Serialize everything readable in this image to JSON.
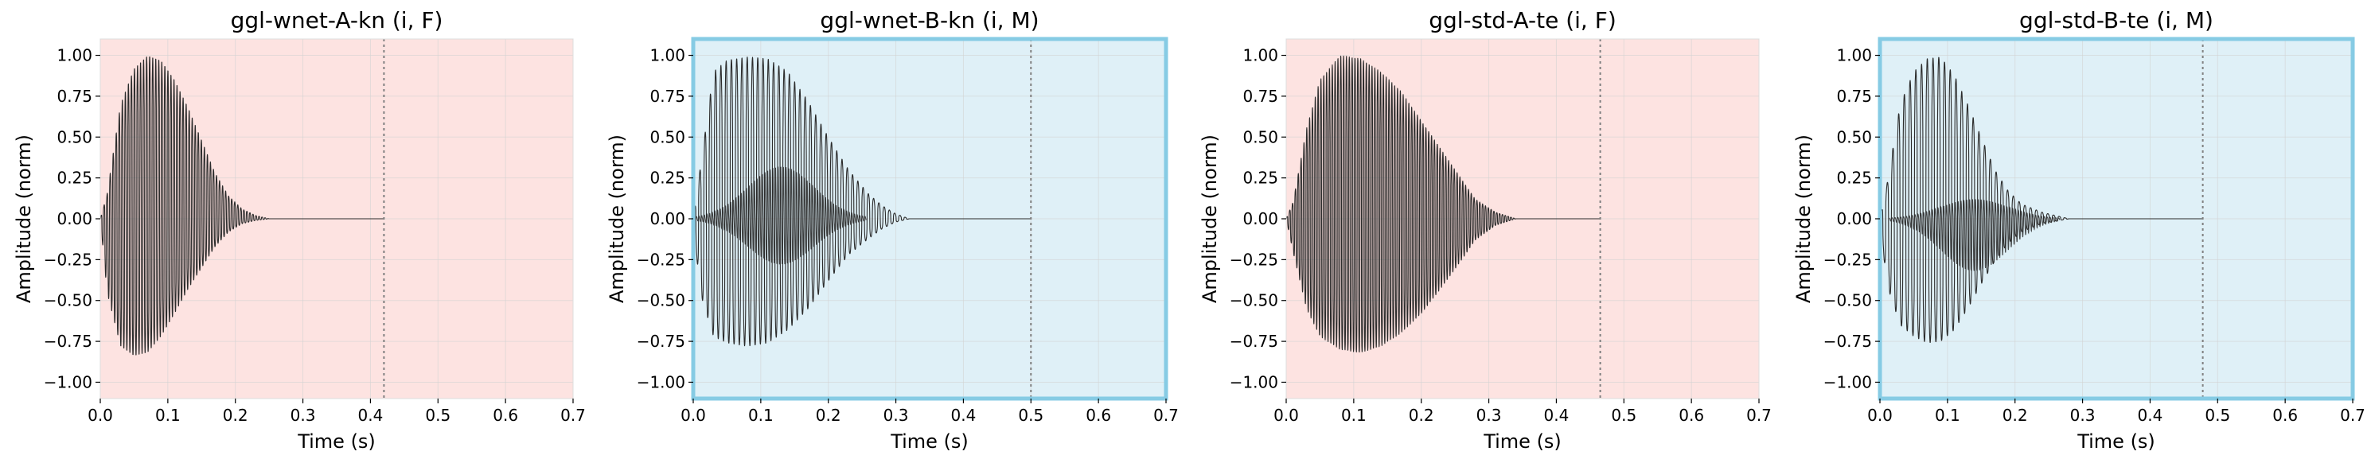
{
  "figure": {
    "xlabel": "Time (s)",
    "ylabel": "Amplitude (norm)"
  },
  "colors": {
    "female_bg": "#fde3e1",
    "male_bg": "#dff0f7",
    "male_border": "#86cbe4",
    "waveform": "#2b2b2b",
    "marker": "#7f7f7f",
    "grid": "#d3d3d3"
  },
  "chart_data": [
    {
      "type": "line",
      "title": "ggl-wnet-A-kn (i, F)",
      "xlabel": "Time (s)",
      "ylabel": "Amplitude (norm)",
      "xlim": [
        0.0,
        0.7
      ],
      "ylim": [
        -1.1,
        1.1
      ],
      "xticks": [
        "0.0",
        "0.1",
        "0.2",
        "0.3",
        "0.4",
        "0.5",
        "0.6",
        "0.7"
      ],
      "yticks": [
        "1.00",
        "0.75",
        "0.50",
        "0.25",
        "0.00",
        "−0.25",
        "−0.50",
        "−0.75",
        "−1.00"
      ],
      "background": "female",
      "highlighted_border": false,
      "duration_marker_x": 0.42,
      "waveform": {
        "envelope_upper": {
          "t": [
            0.0,
            0.01,
            0.03,
            0.05,
            0.07,
            0.09,
            0.11,
            0.13,
            0.15,
            0.17,
            0.19,
            0.21,
            0.23,
            0.25,
            0.42
          ],
          "a": [
            0.0,
            0.15,
            0.7,
            0.92,
            1.0,
            0.97,
            0.85,
            0.68,
            0.48,
            0.28,
            0.14,
            0.06,
            0.02,
            0.0,
            0.0
          ]
        },
        "envelope_lower": {
          "t": [
            0.0,
            0.01,
            0.03,
            0.05,
            0.07,
            0.09,
            0.11,
            0.13,
            0.15,
            0.17,
            0.19,
            0.21,
            0.23,
            0.25,
            0.42
          ],
          "a": [
            0.0,
            -0.45,
            -0.78,
            -0.84,
            -0.82,
            -0.72,
            -0.58,
            -0.43,
            -0.3,
            -0.17,
            -0.08,
            -0.03,
            -0.01,
            0.0,
            0.0
          ]
        },
        "period_s": 0.0045,
        "secondary": null
      }
    },
    {
      "type": "line",
      "title": "ggl-wnet-B-kn (i, M)",
      "xlabel": "Time (s)",
      "ylabel": "Amplitude (norm)",
      "xlim": [
        0.0,
        0.7
      ],
      "ylim": [
        -1.1,
        1.1
      ],
      "xticks": [
        "0.0",
        "0.1",
        "0.2",
        "0.3",
        "0.4",
        "0.5",
        "0.6",
        "0.7"
      ],
      "yticks": [
        "1.00",
        "0.75",
        "0.50",
        "0.25",
        "0.00",
        "−0.25",
        "−0.50",
        "−0.75",
        "−1.00"
      ],
      "background": "male",
      "highlighted_border": true,
      "duration_marker_x": 0.5,
      "waveform": {
        "envelope_upper": {
          "t": [
            0.0,
            0.01,
            0.03,
            0.05,
            0.08,
            0.11,
            0.14,
            0.17,
            0.2,
            0.23,
            0.26,
            0.28,
            0.3,
            0.32,
            0.5
          ],
          "a": [
            0.0,
            0.3,
            0.9,
            0.97,
            0.99,
            0.98,
            0.9,
            0.72,
            0.5,
            0.3,
            0.15,
            0.08,
            0.03,
            0.0,
            0.0
          ]
        },
        "envelope_lower": {
          "t": [
            0.0,
            0.01,
            0.03,
            0.05,
            0.08,
            0.11,
            0.14,
            0.17,
            0.2,
            0.23,
            0.26,
            0.28,
            0.3,
            0.32,
            0.5
          ],
          "a": [
            0.0,
            -0.45,
            -0.72,
            -0.76,
            -0.78,
            -0.76,
            -0.68,
            -0.55,
            -0.38,
            -0.22,
            -0.12,
            -0.06,
            -0.02,
            0.0,
            0.0
          ]
        },
        "period_s": 0.0078,
        "secondary": {
          "center_t": 0.13,
          "width_t": 0.07,
          "upper": 0.32,
          "lower": -0.28
        }
      }
    },
    {
      "type": "line",
      "title": "ggl-std-A-te (i, F)",
      "xlabel": "Time (s)",
      "ylabel": "Amplitude (norm)",
      "xlim": [
        0.0,
        0.7
      ],
      "ylim": [
        -1.1,
        1.1
      ],
      "xticks": [
        "0.0",
        "0.1",
        "0.2",
        "0.3",
        "0.4",
        "0.5",
        "0.6",
        "0.7"
      ],
      "yticks": [
        "1.00",
        "0.75",
        "0.50",
        "0.25",
        "0.00",
        "−0.25",
        "−0.50",
        "−0.75",
        "−1.00"
      ],
      "background": "female",
      "highlighted_border": false,
      "duration_marker_x": 0.465,
      "waveform": {
        "envelope_upper": {
          "t": [
            0.0,
            0.01,
            0.03,
            0.05,
            0.08,
            0.11,
            0.14,
            0.17,
            0.2,
            0.23,
            0.26,
            0.28,
            0.31,
            0.34,
            0.465
          ],
          "a": [
            0.0,
            0.1,
            0.55,
            0.85,
            1.0,
            0.98,
            0.9,
            0.78,
            0.6,
            0.42,
            0.24,
            0.12,
            0.04,
            0.0,
            0.0
          ]
        },
        "envelope_lower": {
          "t": [
            0.0,
            0.01,
            0.03,
            0.05,
            0.08,
            0.11,
            0.14,
            0.17,
            0.2,
            0.23,
            0.26,
            0.28,
            0.31,
            0.34,
            0.465
          ],
          "a": [
            0.0,
            -0.2,
            -0.55,
            -0.72,
            -0.8,
            -0.82,
            -0.78,
            -0.7,
            -0.58,
            -0.42,
            -0.25,
            -0.13,
            -0.04,
            0.0,
            0.0
          ]
        },
        "period_s": 0.0042,
        "secondary": null
      }
    },
    {
      "type": "line",
      "title": "ggl-std-B-te (i, M)",
      "xlabel": "Time (s)",
      "ylabel": "Amplitude (norm)",
      "xlim": [
        0.0,
        0.7
      ],
      "ylim": [
        -1.1,
        1.1
      ],
      "xticks": [
        "0.0",
        "0.1",
        "0.2",
        "0.3",
        "0.4",
        "0.5",
        "0.6",
        "0.7"
      ],
      "yticks": [
        "1.00",
        "0.75",
        "0.50",
        "0.25",
        "0.00",
        "−0.25",
        "−0.50",
        "−0.75",
        "−1.00"
      ],
      "background": "male",
      "highlighted_border": true,
      "duration_marker_x": 0.478,
      "waveform": {
        "envelope_upper": {
          "t": [
            0.0,
            0.01,
            0.03,
            0.05,
            0.07,
            0.09,
            0.11,
            0.13,
            0.15,
            0.17,
            0.19,
            0.21,
            0.24,
            0.28,
            0.478
          ],
          "a": [
            0.0,
            0.2,
            0.7,
            0.9,
            0.98,
            0.99,
            0.88,
            0.7,
            0.5,
            0.3,
            0.17,
            0.09,
            0.04,
            0.0,
            0.0
          ]
        },
        "envelope_lower": {
          "t": [
            0.0,
            0.01,
            0.03,
            0.05,
            0.07,
            0.09,
            0.11,
            0.13,
            0.15,
            0.17,
            0.19,
            0.21,
            0.24,
            0.28,
            0.478
          ],
          "a": [
            0.0,
            -0.4,
            -0.65,
            -0.72,
            -0.76,
            -0.75,
            -0.68,
            -0.55,
            -0.4,
            -0.26,
            -0.15,
            -0.08,
            -0.03,
            0.0,
            0.0
          ]
        },
        "period_s": 0.0085,
        "secondary": {
          "center_t": 0.14,
          "width_t": 0.07,
          "upper": 0.12,
          "lower": -0.32
        }
      }
    }
  ]
}
